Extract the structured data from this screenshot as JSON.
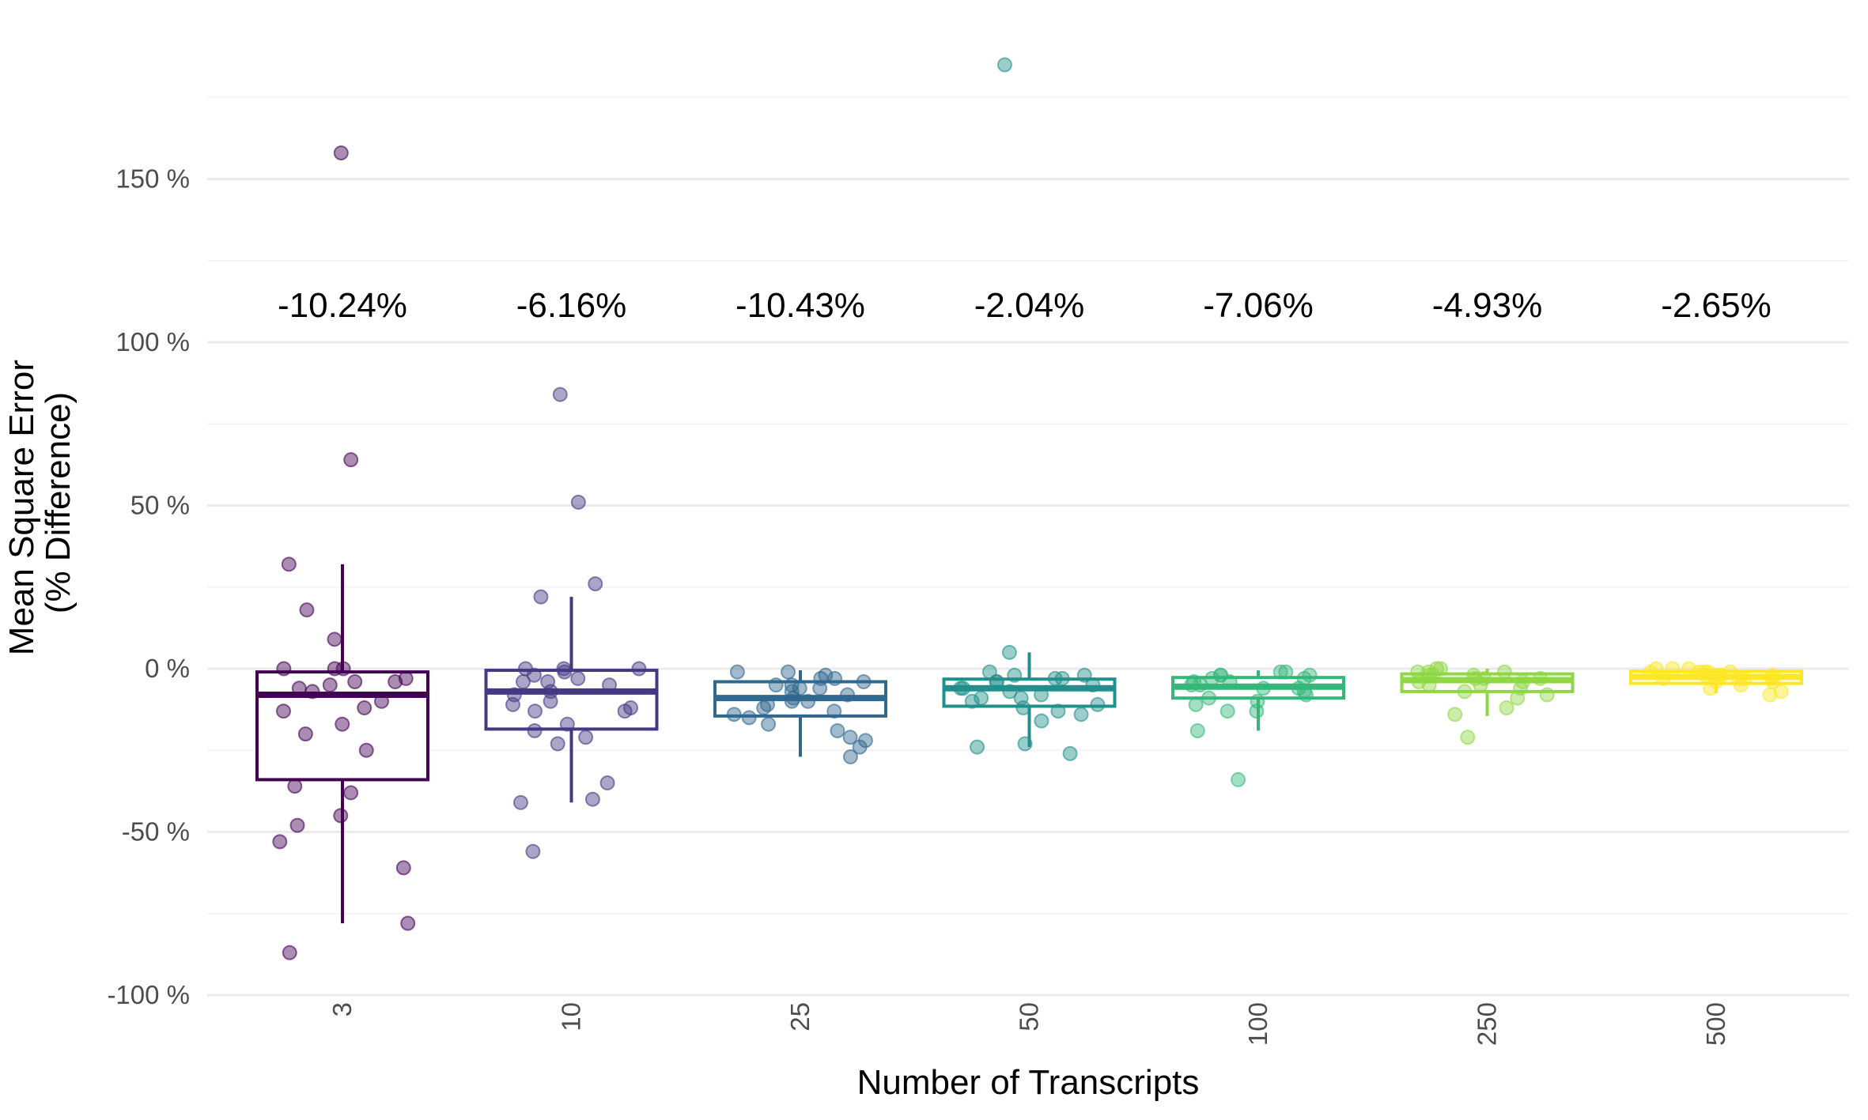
{
  "chart_data": {
    "type": "box",
    "xlabel": "Number of Transcripts",
    "ylabel_lines": [
      "Mean Square Error",
      "(% Difference)"
    ],
    "ylim": [
      -110,
      180
    ],
    "y_ticks": [
      -100,
      -50,
      0,
      50,
      100,
      150
    ],
    "y_tick_labels": [
      "-100 %",
      "-50 %",
      "0 %",
      "50 %",
      "100 %",
      "150 %"
    ],
    "grid": true,
    "legend": "none",
    "categories": [
      "3",
      "10",
      "25",
      "50",
      "100",
      "250",
      "500"
    ],
    "mean_labels": [
      "-10.24%",
      "-6.16%",
      "-10.43%",
      "-2.04%",
      "-7.06%",
      "-4.93%",
      "-2.65%"
    ],
    "colors": [
      "#440154",
      "#443983",
      "#31688e",
      "#21908c",
      "#35b779",
      "#8fd744",
      "#fde725"
    ],
    "boxes": [
      {
        "lower_whisker": -78,
        "q1": -34,
        "median": -8,
        "q3": -1,
        "upper_whisker": 32
      },
      {
        "lower_whisker": -41,
        "q1": -18.5,
        "median": -7,
        "q3": -0.5,
        "upper_whisker": 22
      },
      {
        "lower_whisker": -27,
        "q1": -14.5,
        "median": -9,
        "q3": -4,
        "upper_whisker": -0.5
      },
      {
        "lower_whisker": -24,
        "q1": -11.5,
        "median": -6,
        "q3": -3.2,
        "upper_whisker": 5
      },
      {
        "lower_whisker": -19,
        "q1": -9,
        "median": -5.5,
        "q3": -2.7,
        "upper_whisker": -0.5
      },
      {
        "lower_whisker": -14.5,
        "q1": -7,
        "median": -3.5,
        "q3": -1.6,
        "upper_whisker": 0
      },
      {
        "lower_whisker": -7.5,
        "q1": -4.5,
        "median": -2.5,
        "q3": -0.8,
        "upper_whisker": 0
      }
    ],
    "points": [
      {
        "category": "3",
        "values": [
          158,
          64,
          32,
          18,
          9,
          0,
          0,
          -4,
          -4,
          -5,
          -7,
          -10,
          -12,
          -13,
          -17,
          -20,
          -25,
          -36,
          -38,
          -45,
          -48,
          -53,
          -61,
          -78,
          -87,
          0,
          -3,
          -6
        ]
      },
      {
        "category": "10",
        "values": [
          84,
          51,
          26,
          22,
          0,
          0,
          0,
          -2,
          -3,
          -4,
          -4,
          -5,
          -7,
          -10,
          -11,
          -12,
          -13,
          -13,
          -17,
          -19,
          -21,
          -23,
          -35,
          -40,
          -41,
          -56,
          -1,
          -8
        ]
      },
      {
        "category": "25",
        "values": [
          -1,
          -1,
          -2,
          -3,
          -4,
          -5,
          -5,
          -6,
          -7,
          -8,
          -9,
          -10,
          -11,
          -12,
          -13,
          -15,
          -17,
          -19,
          -21,
          -22,
          -24,
          -27,
          -3,
          -6,
          -10,
          -14
        ]
      },
      {
        "category": "50",
        "values": [
          185,
          5,
          -1,
          -2,
          -3,
          -3,
          -4,
          -5,
          -6,
          -7,
          -8,
          -9,
          -10,
          -11,
          -12,
          -14,
          -16,
          -23,
          -24,
          -26,
          -2,
          -4,
          -6,
          -9,
          -13
        ]
      },
      {
        "category": "100",
        "values": [
          -1,
          -1,
          -2,
          -2,
          -3,
          -3,
          -4,
          -5,
          -5,
          -6,
          -7,
          -8,
          -9,
          -10,
          -11,
          -13,
          -13,
          -19,
          -34,
          -2,
          -4,
          -6
        ]
      },
      {
        "category": "250",
        "values": [
          0,
          0,
          -1,
          -1,
          -2,
          -2,
          -2,
          -3,
          -3,
          -4,
          -4,
          -5,
          -6,
          -7,
          -8,
          -9,
          -12,
          -14,
          -21,
          -1,
          -3,
          -5
        ]
      },
      {
        "category": "500",
        "values": [
          0,
          0,
          0,
          -1,
          -1,
          -1,
          -1,
          -2,
          -2,
          -2,
          -2,
          -3,
          -3,
          -3,
          -4,
          -4,
          -5,
          -6,
          -7,
          -8,
          -1,
          -2,
          -3
        ]
      }
    ]
  }
}
